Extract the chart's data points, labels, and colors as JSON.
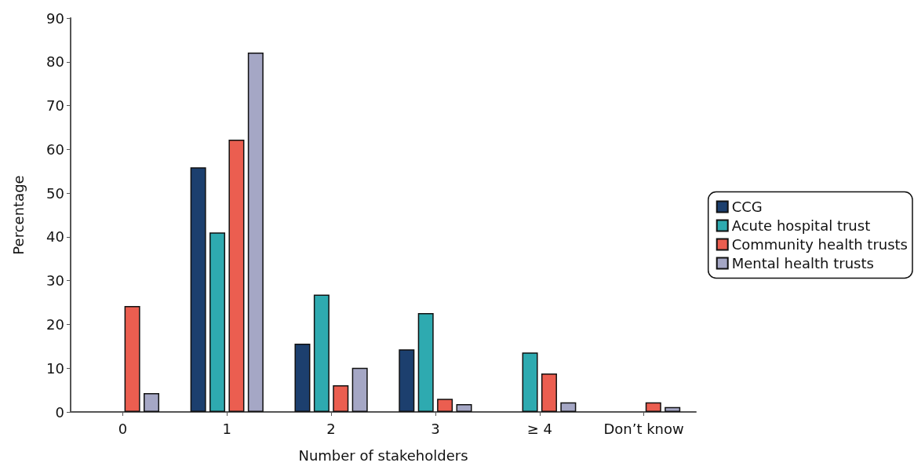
{
  "chart_data": {
    "type": "bar",
    "xlabel": "Number of stakeholders",
    "ylabel": "Percentage",
    "categories": [
      "0",
      "1",
      "2",
      "3",
      "≥ 4",
      "Don’t know"
    ],
    "series": [
      {
        "name": "CCG",
        "color": "#1c3f6e",
        "values": [
          null,
          55.9,
          15.6,
          14.3,
          null,
          null
        ]
      },
      {
        "name": "Acute hospital trust",
        "color": "#2eaab0",
        "values": [
          null,
          41,
          26.8,
          22.6,
          13.6,
          null
        ]
      },
      {
        "name": "Community health trusts",
        "color": "#eb5e50",
        "values": [
          24.2,
          62.2,
          6.1,
          3,
          8.8,
          2.2
        ]
      },
      {
        "name": "Mental health trusts",
        "color": "#a5a7c5",
        "values": [
          4.3,
          82.1,
          10.1,
          1.8,
          2.2,
          1.1
        ]
      }
    ],
    "ylim": [
      0,
      90
    ],
    "yticks": [
      0,
      10,
      20,
      30,
      40,
      50,
      60,
      70,
      80,
      90
    ],
    "grid": false,
    "legend": "right"
  }
}
